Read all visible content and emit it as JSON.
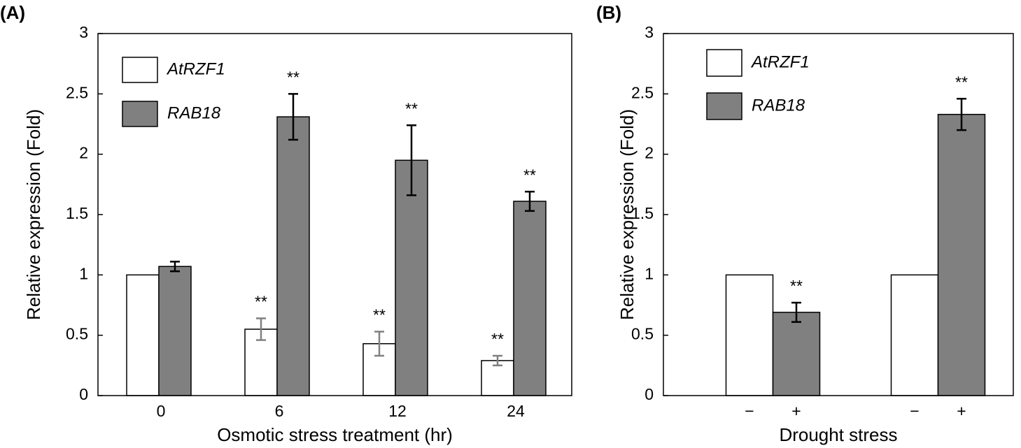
{
  "chart_data": [
    {
      "type": "grouped_bar",
      "panel": "(A)",
      "xlabel": "Osmotic  stress treatment (hr)",
      "ylabel": "Relative expression (Fold)",
      "categories": [
        "0",
        "6",
        "12",
        "24"
      ],
      "series": [
        {
          "name": "AtRZF1",
          "color": "#ffffff",
          "error_color": "#808080",
          "values": [
            1.0,
            0.55,
            0.43,
            0.29
          ],
          "errors": [
            0.0,
            0.09,
            0.1,
            0.04
          ],
          "labels": [
            null,
            "**",
            "**",
            "**"
          ]
        },
        {
          "name": "RAB18",
          "color": "#808080",
          "error_color": "#000000",
          "values": [
            1.07,
            2.31,
            1.95,
            1.61
          ],
          "errors": [
            0.04,
            0.19,
            0.29,
            0.08
          ],
          "labels": [
            null,
            "**",
            "**",
            "**"
          ]
        }
      ],
      "ylim": [
        0,
        3
      ],
      "yticks": [
        0,
        0.5,
        1,
        1.5,
        2,
        2.5,
        3
      ]
    },
    {
      "type": "bar",
      "panel": "(B)",
      "xlabel": "Drought stress",
      "ylabel": "Relative expression (Fold)",
      "categories": [
        "−",
        "+",
        "−",
        "+"
      ],
      "values": [
        1.0,
        0.69,
        1.0,
        2.33
      ],
      "errors": [
        0.0,
        0.08,
        0.0,
        0.13
      ],
      "labels": [
        null,
        "**",
        null,
        "**"
      ],
      "colors": [
        "#ffffff",
        "#808080",
        "#ffffff",
        "#808080"
      ],
      "series": [
        {
          "name": "AtRZF1",
          "color": "#ffffff"
        },
        {
          "name": "RAB18",
          "color": "#808080"
        }
      ],
      "ylim": [
        0,
        3
      ],
      "yticks": [
        0,
        0.5,
        1,
        1.5,
        2,
        2.5,
        3
      ]
    }
  ]
}
